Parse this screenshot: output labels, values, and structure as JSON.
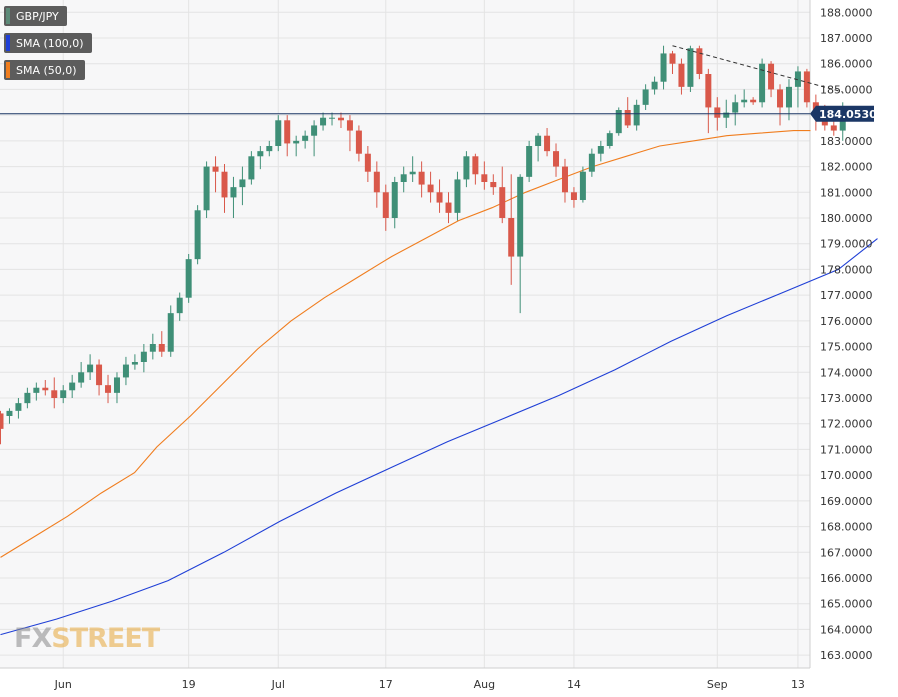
{
  "legend": {
    "instrument": "GBP/JPY",
    "sma100": "SMA (100,0)",
    "sma50": "SMA (50,0)"
  },
  "colors": {
    "bull": "#3f8f77",
    "bear": "#d9584a",
    "sma100": "#1f3fd6",
    "sma50": "#f07d1e",
    "price_line": "#1b3766",
    "grid": "#e4e4e4",
    "plot_bg": "#f7f7f8",
    "legend_bg": "#5c5c5c",
    "trendline": "#333333"
  },
  "logo": {
    "part1": "FX",
    "part2": "STREET"
  },
  "chart_data": {
    "type": "candlestick",
    "title": "",
    "xlabel": "",
    "ylabel": "",
    "ylim": [
      162.5,
      188.4
    ],
    "grid": true,
    "legend_position": "top-left",
    "y_ticks": [
      "163.0000",
      "164.0000",
      "165.0000",
      "166.0000",
      "167.0000",
      "168.0000",
      "169.0000",
      "170.0000",
      "171.0000",
      "172.0000",
      "173.0000",
      "174.0000",
      "175.0000",
      "176.0000",
      "177.0000",
      "178.0000",
      "179.0000",
      "180.0000",
      "181.0000",
      "182.0000",
      "183.0000",
      "184.0000",
      "185.0000",
      "186.0000",
      "187.0000",
      "188.0000"
    ],
    "x_ticks": [
      {
        "label": "Jun",
        "index": 7
      },
      {
        "label": "19",
        "index": 21
      },
      {
        "label": "Jul",
        "index": 31
      },
      {
        "label": "17",
        "index": 43
      },
      {
        "label": "Aug",
        "index": 54
      },
      {
        "label": "14",
        "index": 64
      },
      {
        "label": "Sep",
        "index": 80
      },
      {
        "label": "13",
        "index": 89
      }
    ],
    "current_price": "184.0530",
    "current_value": 184.053,
    "index_count": 95,
    "candles": [
      [
        172.4,
        172.5,
        171.2,
        171.8
      ],
      [
        172.3,
        172.6,
        172.0,
        172.5
      ],
      [
        172.5,
        173.0,
        172.2,
        172.8
      ],
      [
        172.8,
        173.4,
        172.6,
        173.2
      ],
      [
        173.2,
        173.6,
        172.9,
        173.4
      ],
      [
        173.4,
        173.7,
        173.1,
        173.3
      ],
      [
        173.3,
        173.8,
        172.6,
        173.0
      ],
      [
        173.0,
        173.5,
        172.8,
        173.3
      ],
      [
        173.3,
        173.9,
        173.0,
        173.6
      ],
      [
        173.6,
        174.4,
        173.4,
        174.0
      ],
      [
        174.0,
        174.7,
        173.7,
        174.3
      ],
      [
        174.3,
        174.5,
        173.1,
        173.5
      ],
      [
        173.5,
        173.9,
        172.8,
        173.2
      ],
      [
        173.2,
        174.0,
        172.8,
        173.8
      ],
      [
        173.8,
        174.6,
        173.5,
        174.3
      ],
      [
        174.3,
        174.7,
        174.1,
        174.4
      ],
      [
        174.4,
        175.1,
        174.0,
        174.8
      ],
      [
        174.8,
        175.5,
        174.5,
        175.1
      ],
      [
        175.1,
        175.6,
        174.6,
        174.8
      ],
      [
        174.8,
        176.6,
        174.6,
        176.3
      ],
      [
        176.3,
        177.1,
        176.0,
        176.9
      ],
      [
        176.9,
        178.6,
        176.7,
        178.4
      ],
      [
        178.4,
        180.5,
        178.2,
        180.3
      ],
      [
        180.3,
        182.2,
        180.0,
        182.0
      ],
      [
        182.0,
        182.4,
        181.0,
        181.8
      ],
      [
        181.8,
        182.1,
        180.2,
        180.8
      ],
      [
        180.8,
        181.6,
        180.0,
        181.2
      ],
      [
        181.2,
        182.0,
        180.5,
        181.5
      ],
      [
        181.5,
        182.6,
        181.3,
        182.4
      ],
      [
        182.4,
        182.8,
        181.9,
        182.6
      ],
      [
        182.6,
        183.0,
        182.4,
        182.8
      ],
      [
        182.8,
        184.0,
        182.6,
        183.8
      ],
      [
        183.8,
        184.0,
        182.4,
        182.9
      ],
      [
        182.9,
        183.2,
        182.4,
        183.0
      ],
      [
        183.0,
        183.4,
        182.7,
        183.2
      ],
      [
        183.2,
        183.8,
        182.4,
        183.6
      ],
      [
        183.6,
        184.1,
        183.4,
        183.9
      ],
      [
        183.9,
        184.1,
        183.6,
        183.9
      ],
      [
        183.9,
        184.1,
        183.5,
        183.8
      ],
      [
        183.8,
        184.0,
        182.6,
        183.4
      ],
      [
        183.4,
        183.6,
        182.2,
        182.5
      ],
      [
        182.5,
        182.8,
        181.4,
        181.8
      ],
      [
        181.8,
        182.2,
        180.4,
        181.0
      ],
      [
        181.0,
        181.3,
        179.5,
        180.0
      ],
      [
        180.0,
        181.6,
        179.6,
        181.4
      ],
      [
        181.4,
        182.0,
        181.0,
        181.7
      ],
      [
        181.7,
        182.4,
        181.4,
        181.8
      ],
      [
        181.8,
        182.2,
        180.8,
        181.3
      ],
      [
        181.3,
        181.8,
        180.6,
        181.0
      ],
      [
        181.0,
        181.5,
        180.2,
        180.6
      ],
      [
        180.6,
        181.0,
        179.8,
        180.2
      ],
      [
        180.2,
        181.8,
        179.9,
        181.5
      ],
      [
        181.5,
        182.6,
        181.2,
        182.4
      ],
      [
        182.4,
        182.5,
        181.3,
        181.7
      ],
      [
        181.7,
        182.2,
        181.1,
        181.4
      ],
      [
        181.4,
        181.7,
        180.9,
        181.2
      ],
      [
        181.2,
        182.0,
        179.8,
        180.0
      ],
      [
        180.0,
        181.7,
        177.4,
        178.5
      ],
      [
        178.5,
        181.7,
        176.3,
        181.6
      ],
      [
        181.6,
        183.0,
        181.4,
        182.8
      ],
      [
        182.8,
        183.3,
        182.2,
        183.2
      ],
      [
        183.2,
        183.5,
        182.4,
        182.6
      ],
      [
        182.6,
        182.9,
        181.6,
        182.0
      ],
      [
        182.0,
        182.3,
        180.6,
        181.0
      ],
      [
        181.0,
        181.2,
        180.4,
        180.7
      ],
      [
        180.7,
        182.0,
        180.6,
        181.8
      ],
      [
        181.8,
        182.7,
        181.6,
        182.5
      ],
      [
        182.5,
        183.0,
        182.2,
        182.8
      ],
      [
        182.8,
        183.4,
        182.7,
        183.3
      ],
      [
        183.3,
        184.3,
        183.2,
        184.2
      ],
      [
        184.2,
        184.7,
        183.5,
        183.6
      ],
      [
        183.6,
        184.6,
        183.4,
        184.4
      ],
      [
        184.4,
        185.2,
        184.2,
        185.0
      ],
      [
        185.0,
        185.5,
        184.8,
        185.3
      ],
      [
        185.3,
        186.7,
        185.0,
        186.4
      ],
      [
        186.4,
        186.5,
        185.6,
        186.0
      ],
      [
        186.0,
        186.2,
        184.8,
        185.1
      ],
      [
        185.1,
        186.7,
        184.9,
        186.6
      ],
      [
        186.6,
        186.7,
        185.4,
        185.6
      ],
      [
        185.6,
        185.8,
        183.3,
        184.3
      ],
      [
        184.3,
        184.7,
        183.4,
        183.9
      ],
      [
        183.9,
        184.6,
        183.5,
        184.1
      ],
      [
        184.1,
        184.8,
        183.6,
        184.5
      ],
      [
        184.5,
        185.0,
        184.3,
        184.6
      ],
      [
        184.6,
        184.7,
        184.4,
        184.5
      ],
      [
        184.5,
        186.2,
        184.3,
        186.0
      ],
      [
        186.0,
        186.1,
        184.7,
        185.0
      ],
      [
        185.0,
        185.2,
        183.6,
        184.3
      ],
      [
        184.3,
        185.4,
        183.8,
        185.1
      ],
      [
        185.1,
        185.9,
        184.3,
        185.7
      ],
      [
        185.7,
        185.8,
        184.3,
        184.5
      ],
      [
        184.5,
        184.8,
        183.4,
        184.0
      ],
      [
        184.0,
        184.4,
        183.4,
        183.6
      ],
      [
        183.6,
        183.9,
        183.2,
        183.4
      ],
      [
        183.4,
        184.5,
        183.0,
        184.05
      ]
    ],
    "series": [
      {
        "name": "SMA (50,0)",
        "values": [
          [
            0,
            166.8
          ],
          [
            6,
            167.6
          ],
          [
            12,
            168.4
          ],
          [
            18,
            169.3
          ],
          [
            24,
            170.1
          ],
          [
            28,
            171.1
          ],
          [
            34,
            172.3
          ],
          [
            40,
            173.6
          ],
          [
            46,
            174.9
          ],
          [
            52,
            176.0
          ],
          [
            58,
            176.9
          ],
          [
            64,
            177.7
          ],
          [
            70,
            178.5
          ],
          [
            76,
            179.2
          ],
          [
            82,
            179.9
          ],
          [
            88,
            180.4
          ],
          [
            94,
            181.0
          ],
          [
            100,
            181.5
          ],
          [
            106,
            182.0
          ],
          [
            112,
            182.4
          ],
          [
            118,
            182.8
          ],
          [
            124,
            183.0
          ],
          [
            130,
            183.2
          ],
          [
            136,
            183.3
          ],
          [
            142,
            183.4
          ],
          [
            145,
            183.4
          ]
        ]
      },
      {
        "name": "SMA (100,0)",
        "values": [
          [
            0,
            163.8
          ],
          [
            10,
            164.4
          ],
          [
            20,
            165.1
          ],
          [
            30,
            165.9
          ],
          [
            40,
            167.0
          ],
          [
            50,
            168.2
          ],
          [
            60,
            169.3
          ],
          [
            70,
            170.3
          ],
          [
            80,
            171.3
          ],
          [
            90,
            172.2
          ],
          [
            100,
            173.1
          ],
          [
            110,
            174.1
          ],
          [
            120,
            175.2
          ],
          [
            130,
            176.2
          ],
          [
            140,
            177.1
          ],
          [
            150,
            178.0
          ],
          [
            157,
            179.2
          ]
        ]
      }
    ],
    "annotations": [
      {
        "type": "horizontal_line",
        "value": 184.053
      },
      {
        "type": "trend_line",
        "from_index": 75,
        "from_value": 186.7,
        "to_index": 94,
        "to_value": 184.9
      }
    ]
  }
}
